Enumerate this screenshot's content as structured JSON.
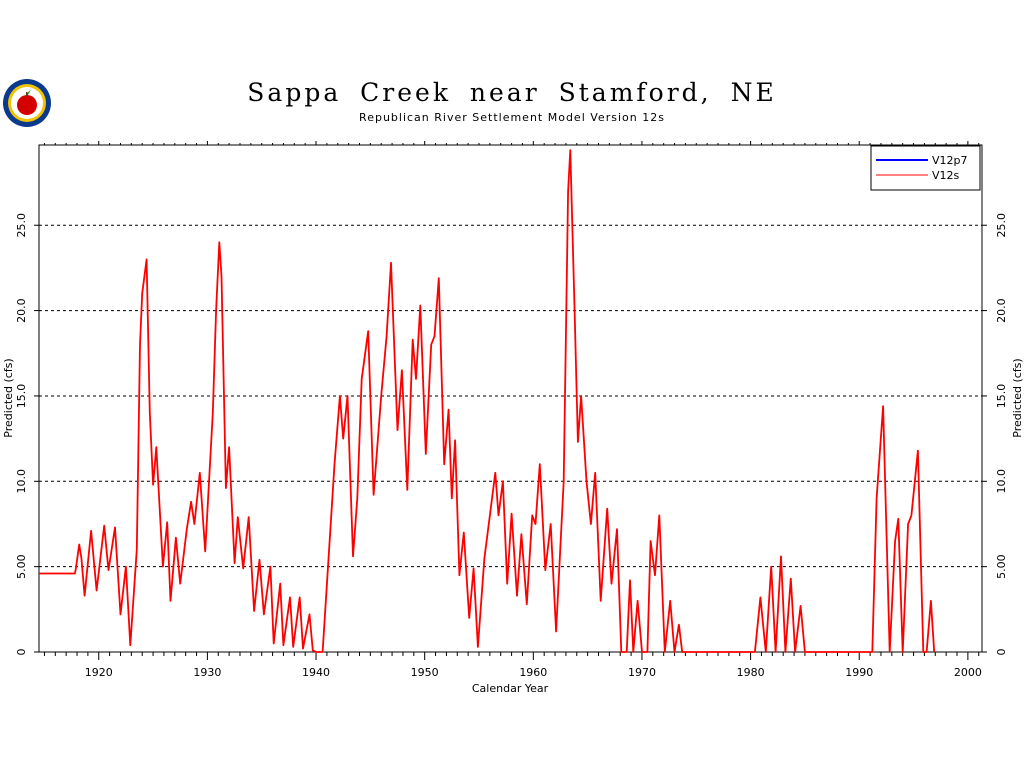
{
  "header": {
    "title": "Sappa Creek near Stamford, NE",
    "subtitle": "Republican River Settlement Model Version 12s"
  },
  "logo": {
    "icon": "agency-seal-icon",
    "colors": [
      "#0a3a8c",
      "#f2c300",
      "#d40000",
      "#2a9a2a"
    ]
  },
  "chart_data": {
    "type": "line",
    "xlabel": "Calendar Year",
    "ylabel": "Predicted (cfs)",
    "xlim": [
      1914.5,
      2001.3
    ],
    "ylim": [
      0,
      29.7
    ],
    "x_ticks": [
      1920,
      1930,
      1940,
      1950,
      1960,
      1970,
      1980,
      1990,
      2000
    ],
    "x_tick_labels": [
      "1920",
      "1930",
      "1940",
      "1950",
      "1960",
      "1970",
      "1980",
      "1990",
      "2000"
    ],
    "y_ticks": [
      0,
      5,
      10,
      15,
      20,
      25
    ],
    "y_tick_labels": [
      "0",
      "5.00",
      "10.0",
      "15.0",
      "20.0",
      "25.0"
    ],
    "grid": "horizontal-dashed",
    "legend_position": "top-right",
    "series": [
      {
        "name": "V12p7",
        "color": "#0000ff",
        "values": []
      },
      {
        "name": "V12s",
        "color": "#ff0000",
        "points": [
          [
            1914.5,
            4.6
          ],
          [
            1917.8,
            4.6
          ],
          [
            1917.9,
            4.9
          ],
          [
            1918.2,
            6.3
          ],
          [
            1918.4,
            5.5
          ],
          [
            1918.7,
            3.3
          ],
          [
            1919.3,
            7.1
          ],
          [
            1919.8,
            3.6
          ],
          [
            1920.5,
            7.4
          ],
          [
            1920.9,
            4.8
          ],
          [
            1921.5,
            7.3
          ],
          [
            1922.0,
            2.2
          ],
          [
            1922.5,
            5.0
          ],
          [
            1922.9,
            0.4
          ],
          [
            1923.5,
            6.0
          ],
          [
            1923.8,
            18.0
          ],
          [
            1924.0,
            21.0
          ],
          [
            1924.4,
            23.0
          ],
          [
            1924.7,
            14.0
          ],
          [
            1925.0,
            9.8
          ],
          [
            1925.3,
            12.0
          ],
          [
            1925.9,
            5.0
          ],
          [
            1926.3,
            7.6
          ],
          [
            1926.6,
            3.0
          ],
          [
            1927.1,
            6.7
          ],
          [
            1927.5,
            4.0
          ],
          [
            1928.1,
            7.2
          ],
          [
            1928.5,
            8.8
          ],
          [
            1928.8,
            7.5
          ],
          [
            1929.3,
            10.5
          ],
          [
            1929.8,
            5.9
          ],
          [
            1930.5,
            14.0
          ],
          [
            1930.8,
            20.0
          ],
          [
            1931.1,
            24.0
          ],
          [
            1931.3,
            22.0
          ],
          [
            1931.7,
            9.6
          ],
          [
            1932.0,
            12.0
          ],
          [
            1932.5,
            5.2
          ],
          [
            1932.8,
            7.9
          ],
          [
            1933.3,
            4.9
          ],
          [
            1933.8,
            7.9
          ],
          [
            1934.3,
            2.4
          ],
          [
            1934.8,
            5.4
          ],
          [
            1935.2,
            2.2
          ],
          [
            1935.8,
            5.0
          ],
          [
            1936.1,
            0.5
          ],
          [
            1936.7,
            4.0
          ],
          [
            1937.0,
            0.4
          ],
          [
            1937.6,
            3.2
          ],
          [
            1937.9,
            0.3
          ],
          [
            1938.5,
            3.2
          ],
          [
            1938.8,
            0.2
          ],
          [
            1939.4,
            2.2
          ],
          [
            1939.7,
            0.1
          ],
          [
            1940.0,
            0.0
          ],
          [
            1940.6,
            0.0
          ],
          [
            1941.2,
            6.0
          ],
          [
            1941.7,
            11.0
          ],
          [
            1942.2,
            15.0
          ],
          [
            1942.5,
            12.5
          ],
          [
            1942.9,
            15.0
          ],
          [
            1943.4,
            5.6
          ],
          [
            1943.8,
            9.0
          ],
          [
            1944.2,
            16.0
          ],
          [
            1944.8,
            18.8
          ],
          [
            1945.3,
            9.2
          ],
          [
            1946.0,
            15.0
          ],
          [
            1946.5,
            18.5
          ],
          [
            1946.9,
            22.8
          ],
          [
            1947.5,
            13.0
          ],
          [
            1947.9,
            16.5
          ],
          [
            1948.4,
            9.5
          ],
          [
            1948.9,
            18.3
          ],
          [
            1949.2,
            16.0
          ],
          [
            1949.6,
            20.3
          ],
          [
            1950.1,
            11.6
          ],
          [
            1950.6,
            18.0
          ],
          [
            1950.9,
            18.5
          ],
          [
            1951.3,
            21.9
          ],
          [
            1951.8,
            11.0
          ],
          [
            1952.2,
            14.2
          ],
          [
            1952.5,
            9.0
          ],
          [
            1952.8,
            12.4
          ],
          [
            1953.2,
            4.5
          ],
          [
            1953.6,
            7.0
          ],
          [
            1954.1,
            2.0
          ],
          [
            1954.5,
            4.9
          ],
          [
            1954.9,
            0.3
          ],
          [
            1955.5,
            5.5
          ],
          [
            1955.8,
            7.0
          ],
          [
            1956.5,
            10.5
          ],
          [
            1956.8,
            8.0
          ],
          [
            1957.2,
            10.0
          ],
          [
            1957.6,
            4.0
          ],
          [
            1958.0,
            8.1
          ],
          [
            1958.5,
            3.3
          ],
          [
            1958.9,
            6.9
          ],
          [
            1959.4,
            2.8
          ],
          [
            1959.9,
            8.0
          ],
          [
            1960.2,
            7.5
          ],
          [
            1960.6,
            11.0
          ],
          [
            1961.1,
            4.8
          ],
          [
            1961.6,
            7.5
          ],
          [
            1962.1,
            1.2
          ],
          [
            1962.8,
            10.0
          ],
          [
            1963.2,
            27.0
          ],
          [
            1963.4,
            29.4
          ],
          [
            1963.8,
            20.0
          ],
          [
            1964.1,
            12.3
          ],
          [
            1964.4,
            15.0
          ],
          [
            1964.9,
            10.0
          ],
          [
            1965.3,
            7.5
          ],
          [
            1965.7,
            10.5
          ],
          [
            1966.2,
            3.0
          ],
          [
            1966.8,
            8.4
          ],
          [
            1967.2,
            4.0
          ],
          [
            1967.7,
            7.2
          ],
          [
            1968.1,
            0.0
          ],
          [
            1968.6,
            0.0
          ],
          [
            1968.9,
            4.2
          ],
          [
            1969.2,
            0.0
          ],
          [
            1969.6,
            3.0
          ],
          [
            1970.0,
            0.0
          ],
          [
            1970.5,
            0.0
          ],
          [
            1970.8,
            6.5
          ],
          [
            1971.2,
            4.5
          ],
          [
            1971.6,
            8.0
          ],
          [
            1972.1,
            0.0
          ],
          [
            1972.6,
            3.0
          ],
          [
            1973.0,
            0.0
          ],
          [
            1973.4,
            1.6
          ],
          [
            1973.7,
            0.0
          ],
          [
            1974.0,
            0.0
          ],
          [
            1980.4,
            0.0
          ],
          [
            1980.9,
            3.2
          ],
          [
            1981.4,
            0.0
          ],
          [
            1981.9,
            5.0
          ],
          [
            1982.3,
            0.0
          ],
          [
            1982.8,
            5.6
          ],
          [
            1983.2,
            0.0
          ],
          [
            1983.7,
            4.3
          ],
          [
            1984.1,
            0.0
          ],
          [
            1984.6,
            2.7
          ],
          [
            1985.0,
            0.0
          ],
          [
            1991.2,
            0.0
          ],
          [
            1991.6,
            9.0
          ],
          [
            1992.2,
            14.4
          ],
          [
            1992.8,
            0.0
          ],
          [
            1993.3,
            6.5
          ],
          [
            1993.6,
            7.8
          ],
          [
            1994.0,
            0.0
          ],
          [
            1994.5,
            7.5
          ],
          [
            1994.8,
            8.0
          ],
          [
            1995.4,
            11.8
          ],
          [
            1995.9,
            0.0
          ],
          [
            1996.2,
            0.0
          ],
          [
            1996.6,
            3.0
          ],
          [
            1996.9,
            0.0
          ]
        ]
      }
    ]
  }
}
